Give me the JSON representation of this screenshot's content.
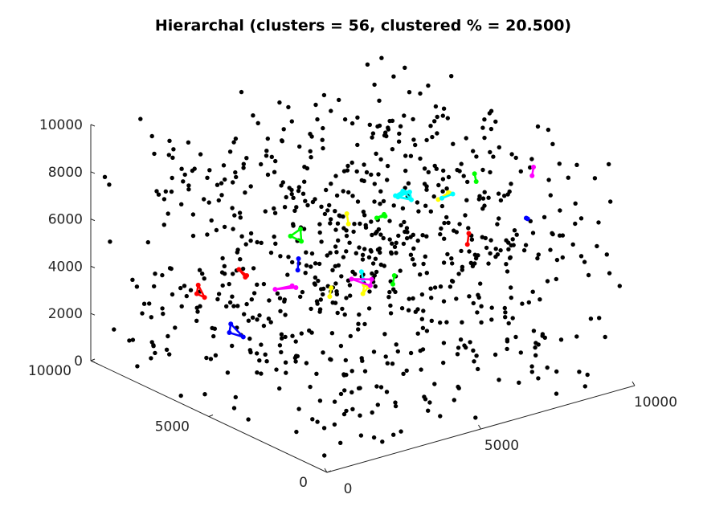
{
  "chart_data": {
    "type": "scatter",
    "projection": "3d",
    "title": "Hierarchal (clusters = 56, clustered % = 20.500)",
    "xlabel": "",
    "ylabel": "",
    "zlabel": "",
    "xlim": [
      0,
      10000
    ],
    "ylim": [
      0,
      10000
    ],
    "zlim": [
      0,
      10000
    ],
    "x_ticks": [
      "0",
      "5000",
      "10000"
    ],
    "y_ticks": [
      "0",
      "5000",
      "10000"
    ],
    "z_ticks": [
      "0",
      "2000",
      "4000",
      "6000",
      "8000",
      "10000"
    ],
    "grid": false,
    "legend": "none",
    "unclustered_color": "#000000",
    "cluster_colors": [
      "#00ffff",
      "#00ff00",
      "#ffff00",
      "#ff00ff",
      "#0000ff",
      "#ff0000"
    ],
    "unclustered_point_count": 800,
    "clusters": [
      {
        "color": "#00ffff",
        "points": [
          [
            4000,
            2000,
            9500
          ],
          [
            4300,
            2100,
            9300
          ],
          [
            4150,
            2400,
            9000
          ],
          [
            3950,
            2250,
            9200
          ],
          [
            4200,
            1900,
            9100
          ]
        ]
      },
      {
        "color": "#00ff00",
        "points": [
          [
            2000,
            500,
            9800
          ],
          [
            2200,
            450,
            9900
          ],
          [
            2350,
            600,
            9700
          ]
        ]
      },
      {
        "color": "#00ff00",
        "points": [
          [
            1500,
            3500,
            7800
          ],
          [
            1700,
            3300,
            7600
          ],
          [
            1900,
            3600,
            7900
          ]
        ]
      },
      {
        "color": "#ffff00",
        "points": [
          [
            7400,
            4500,
            7000
          ],
          [
            7600,
            4700,
            6800
          ],
          [
            7300,
            4800,
            6600
          ]
        ]
      },
      {
        "color": "#ffff00",
        "points": [
          [
            3000,
            3000,
            8000
          ],
          [
            3100,
            3200,
            8300
          ]
        ]
      },
      {
        "color": "#ff00ff",
        "points": [
          [
            5300,
            9100,
            1500
          ],
          [
            5700,
            8900,
            1600
          ],
          [
            5900,
            9000,
            1400
          ]
        ]
      },
      {
        "color": "#ff00ff",
        "points": [
          [
            8200,
            2000,
            8600
          ],
          [
            8400,
            2200,
            8800
          ]
        ]
      },
      {
        "color": "#0000ff",
        "points": [
          [
            1200,
            2800,
            6800
          ],
          [
            1300,
            2900,
            7200
          ]
        ]
      },
      {
        "color": "#0000ff",
        "points": [
          [
            2200,
            7000,
            1800
          ],
          [
            2500,
            6800,
            1600
          ],
          [
            2400,
            7200,
            2000
          ]
        ]
      },
      {
        "color": "#ff0000",
        "points": [
          [
            4300,
            9000,
            2500
          ],
          [
            4100,
            8800,
            2600
          ],
          [
            4200,
            9200,
            2700
          ]
        ]
      },
      {
        "color": "#ff0000",
        "points": [
          [
            2600,
            8900,
            2400
          ],
          [
            2700,
            8700,
            2300
          ],
          [
            2800,
            9100,
            2600
          ]
        ]
      },
      {
        "color": "#ff0000",
        "points": [
          [
            8400,
            5000,
            4200
          ],
          [
            8600,
            5200,
            4500
          ]
        ]
      },
      {
        "color": "#00ffff",
        "points": [
          [
            6700,
            7200,
            2300
          ],
          [
            6800,
            7400,
            2500
          ]
        ]
      },
      {
        "color": "#00ff00",
        "points": [
          [
            6900,
            6200,
            2500
          ],
          [
            7100,
            6400,
            2700
          ]
        ]
      },
      {
        "color": "#ffff00",
        "points": [
          [
            7000,
            7600,
            1400
          ],
          [
            7200,
            7800,
            1600
          ],
          [
            7100,
            7500,
            1700
          ]
        ]
      },
      {
        "color": "#ffff00",
        "points": [
          [
            6000,
            7700,
            1600
          ],
          [
            6200,
            7900,
            1800
          ]
        ]
      },
      {
        "color": "#ff00ff",
        "points": [
          [
            7400,
            8600,
            1400
          ],
          [
            7700,
            8200,
            1200
          ],
          [
            7900,
            8400,
            1300
          ]
        ]
      },
      {
        "color": "#00ff00",
        "points": [
          [
            6000,
            1500,
            9400
          ],
          [
            6100,
            1700,
            9600
          ]
        ]
      },
      {
        "color": "#00ffff",
        "points": [
          [
            5500,
            2300,
            8500
          ],
          [
            5700,
            2100,
            8700
          ]
        ]
      },
      {
        "color": "#0000ff",
        "points": [
          [
            8700,
            2900,
            6200
          ],
          [
            8900,
            3100,
            6000
          ]
        ]
      }
    ]
  }
}
